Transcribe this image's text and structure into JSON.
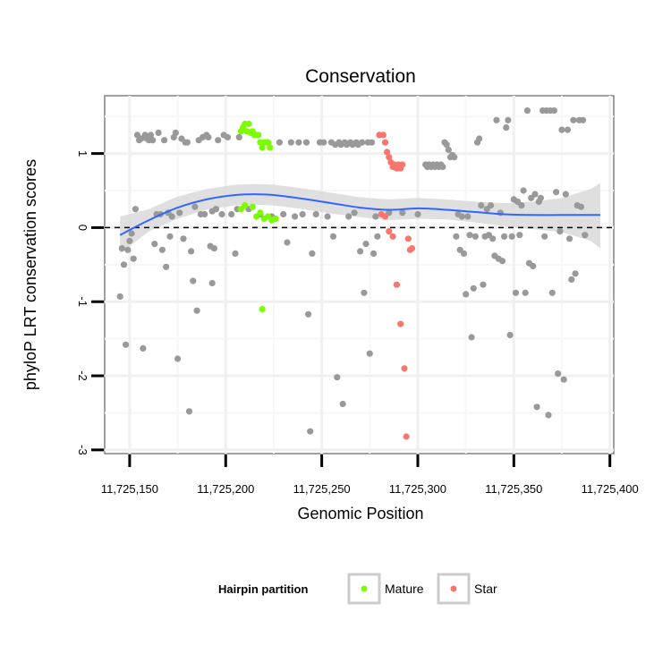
{
  "chart_data": {
    "type": "scatter",
    "title": "Conservation",
    "xlabel": "Genomic Position",
    "ylabel": "phyloP LRT conservation scores",
    "xlim": [
      11725137,
      11725402
    ],
    "ylim": [
      -3.05,
      1.78
    ],
    "x_ticks": [
      11725150,
      11725200,
      11725250,
      11725300,
      11725350,
      11725400
    ],
    "x_tick_labels": [
      "11,725,150",
      "11,725,200",
      "11,725,250",
      "11,725,300",
      "11,725,350",
      "11,725,400"
    ],
    "y_ticks": [
      -3,
      -2,
      -1,
      0,
      1
    ],
    "y_tick_labels": [
      "-3",
      "-2",
      "-1",
      "0",
      "1"
    ],
    "reference_line": {
      "y": 0,
      "style": "dashed"
    },
    "legend": {
      "title": "Hairpin partition",
      "position": "bottom",
      "entries": [
        {
          "name": "Mature",
          "color": "#7CFC00"
        },
        {
          "name": "Star",
          "color": "#F8766D"
        }
      ]
    },
    "colors": {
      "other": "#999999",
      "Mature": "#7CFC00",
      "Star": "#F8766D",
      "smooth": "#3366FF",
      "ribbon": "#D9D9D9"
    },
    "series": [
      {
        "name": "Other",
        "points": [
          [
            11725145,
            -0.93
          ],
          [
            11725146,
            -0.28
          ],
          [
            11725147,
            -0.5
          ],
          [
            11725148,
            -1.58
          ],
          [
            11725149,
            -0.3
          ],
          [
            11725150,
            -0.18
          ],
          [
            11725151,
            -0.08
          ],
          [
            11725152,
            -0.42
          ],
          [
            11725153,
            0.25
          ],
          [
            11725154,
            1.25
          ],
          [
            11725155,
            1.18
          ],
          [
            11725156,
            1.2
          ],
          [
            11725157,
            -1.63
          ],
          [
            11725158,
            1.25
          ],
          [
            11725159,
            1.2
          ],
          [
            11725160,
            1.18
          ],
          [
            11725161,
            1.25
          ],
          [
            11725162,
            1.18
          ],
          [
            11725163,
            -0.22
          ],
          [
            11725164,
            0.18
          ],
          [
            11725165,
            1.28
          ],
          [
            11725166,
            0.18
          ],
          [
            11725167,
            -0.3
          ],
          [
            11725168,
            1.18
          ],
          [
            11725169,
            -0.53
          ],
          [
            11725170,
            0.2
          ],
          [
            11725171,
            -0.12
          ],
          [
            11725172,
            0.15
          ],
          [
            11725173,
            1.22
          ],
          [
            11725174,
            1.28
          ],
          [
            11725175,
            -1.77
          ],
          [
            11725176,
            0.2
          ],
          [
            11725177,
            1.2
          ],
          [
            11725178,
            -0.15
          ],
          [
            11725179,
            1.15
          ],
          [
            11725180,
            1.15
          ],
          [
            11725181,
            -2.48
          ],
          [
            11725182,
            -0.32
          ],
          [
            11725183,
            -0.72
          ],
          [
            11725184,
            0.28
          ],
          [
            11725185,
            -1.12
          ],
          [
            11725186,
            1.18
          ],
          [
            11725187,
            0.18
          ],
          [
            11725188,
            1.22
          ],
          [
            11725189,
            0.18
          ],
          [
            11725190,
            1.25
          ],
          [
            11725191,
            1.22
          ],
          [
            11725192,
            -0.25
          ],
          [
            11725193,
            0.22
          ],
          [
            11725194,
            -0.28
          ],
          [
            11725195,
            0.25
          ],
          [
            11725196,
            1.18
          ],
          [
            11725198,
            0.18
          ],
          [
            11725199,
            1.25
          ],
          [
            11725201,
            1.22
          ],
          [
            11725203,
            0.18
          ],
          [
            11725205,
            -0.35
          ],
          [
            11725206,
            0.25
          ],
          [
            11725207,
            1.22
          ],
          [
            11725193,
            -0.75
          ],
          [
            11725212,
            0.25
          ],
          [
            11725218,
            0.18
          ],
          [
            11725222,
            1.15
          ],
          [
            11725224,
            0.15
          ],
          [
            11725228,
            1.15
          ],
          [
            11725230,
            0.18
          ],
          [
            11725232,
            -0.2
          ],
          [
            11725234,
            1.15
          ],
          [
            11725236,
            0.15
          ],
          [
            11725238,
            1.15
          ],
          [
            11725240,
            0.18
          ],
          [
            11725242,
            1.15
          ],
          [
            11725243,
            -1.17
          ],
          [
            11725244,
            -2.75
          ],
          [
            11725245,
            -0.35
          ],
          [
            11725247,
            0.18
          ],
          [
            11725249,
            1.15
          ],
          [
            11725251,
            1.15
          ],
          [
            11725253,
            0.15
          ],
          [
            11725255,
            1.15
          ],
          [
            11725256,
            -0.12
          ],
          [
            11725257,
            1.12
          ],
          [
            11725258,
            -2.02
          ],
          [
            11725259,
            1.15
          ],
          [
            11725260,
            1.12
          ],
          [
            11725261,
            -2.38
          ],
          [
            11725262,
            1.15
          ],
          [
            11725263,
            1.12
          ],
          [
            11725264,
            0.15
          ],
          [
            11725265,
            1.15
          ],
          [
            11725266,
            1.12
          ],
          [
            11725267,
            0.2
          ],
          [
            11725268,
            1.15
          ],
          [
            11725269,
            1.12
          ],
          [
            11725270,
            -0.32
          ],
          [
            11725271,
            1.15
          ],
          [
            11725272,
            -0.88
          ],
          [
            11725273,
            -0.22
          ],
          [
            11725274,
            1.15
          ],
          [
            11725275,
            -1.7
          ],
          [
            11725276,
            1.15
          ],
          [
            11725277,
            -0.35
          ],
          [
            11725278,
            0.15
          ],
          [
            11725279,
            -0.12
          ],
          [
            11725285,
            0.2
          ],
          [
            11725292,
            0.2
          ],
          [
            11725300,
            0.18
          ],
          [
            11725304,
            0.85
          ],
          [
            11725305,
            0.82
          ],
          [
            11725306,
            0.85
          ],
          [
            11725307,
            0.82
          ],
          [
            11725308,
            0.85
          ],
          [
            11725309,
            0.82
          ],
          [
            11725310,
            0.85
          ],
          [
            11725311,
            0.82
          ],
          [
            11725312,
            0.85
          ],
          [
            11725313,
            0.82
          ],
          [
            11725314,
            1.15
          ],
          [
            11725315,
            1.12
          ],
          [
            11725316,
            1.05
          ],
          [
            11725317,
            0.95
          ],
          [
            11725318,
            0.98
          ],
          [
            11725319,
            0.95
          ],
          [
            11725320,
            -0.12
          ],
          [
            11725321,
            0.18
          ],
          [
            11725322,
            -0.3
          ],
          [
            11725323,
            0.15
          ],
          [
            11725324,
            -0.35
          ],
          [
            11725325,
            -0.9
          ],
          [
            11725326,
            0.15
          ],
          [
            11725327,
            -0.1
          ],
          [
            11725328,
            -1.48
          ],
          [
            11725329,
            -0.82
          ],
          [
            11725330,
            -0.12
          ],
          [
            11725331,
            1.15
          ],
          [
            11725332,
            1.2
          ],
          [
            11725333,
            0.3
          ],
          [
            11725334,
            -0.77
          ],
          [
            11725335,
            -0.12
          ],
          [
            11725336,
            0.25
          ],
          [
            11725337,
            -0.1
          ],
          [
            11725338,
            0.3
          ],
          [
            11725339,
            -0.15
          ],
          [
            11725340,
            -0.38
          ],
          [
            11725341,
            1.45
          ],
          [
            11725342,
            -0.42
          ],
          [
            11725343,
            0.2
          ],
          [
            11725344,
            -0.45
          ],
          [
            11725345,
            -0.12
          ],
          [
            11725346,
            1.35
          ],
          [
            11725347,
            1.45
          ],
          [
            11725348,
            -1.45
          ],
          [
            11725349,
            -0.12
          ],
          [
            11725350,
            0.38
          ],
          [
            11725351,
            -0.88
          ],
          [
            11725352,
            0.35
          ],
          [
            11725353,
            -0.1
          ],
          [
            11725354,
            0.3
          ],
          [
            11725355,
            0.5
          ],
          [
            11725356,
            -0.88
          ],
          [
            11725357,
            1.58
          ],
          [
            11725358,
            -0.48
          ],
          [
            11725359,
            0.4
          ],
          [
            11725360,
            -0.52
          ],
          [
            11725361,
            0.45
          ],
          [
            11725362,
            -2.42
          ],
          [
            11725363,
            0.35
          ],
          [
            11725364,
            0.4
          ],
          [
            11725365,
            1.58
          ],
          [
            11725366,
            -0.12
          ],
          [
            11725367,
            1.58
          ],
          [
            11725368,
            -2.53
          ],
          [
            11725369,
            1.58
          ],
          [
            11725370,
            -0.88
          ],
          [
            11725371,
            1.58
          ],
          [
            11725372,
            0.48
          ],
          [
            11725373,
            -1.97
          ],
          [
            11725374,
            -0.05
          ],
          [
            11725375,
            1.32
          ],
          [
            11725376,
            -2.05
          ],
          [
            11725377,
            0.45
          ],
          [
            11725378,
            1.32
          ],
          [
            11725379,
            -0.15
          ],
          [
            11725380,
            -0.7
          ],
          [
            11725381,
            1.45
          ],
          [
            11725382,
            -0.62
          ],
          [
            11725383,
            0.3
          ],
          [
            11725384,
            1.45
          ],
          [
            11725385,
            0.28
          ],
          [
            11725386,
            1.45
          ],
          [
            11725387,
            -0.1
          ]
        ]
      },
      {
        "name": "Mature",
        "points": [
          [
            11725208,
            1.3
          ],
          [
            11725209,
            1.35
          ],
          [
            11725210,
            1.4
          ],
          [
            11725211,
            1.3
          ],
          [
            11725212,
            1.4
          ],
          [
            11725213,
            1.28
          ],
          [
            11725214,
            1.3
          ],
          [
            11725215,
            1.25
          ],
          [
            11725216,
            1.25
          ],
          [
            11725217,
            1.25
          ],
          [
            11725218,
            1.15
          ],
          [
            11725219,
            1.08
          ],
          [
            11725220,
            1.15
          ],
          [
            11725221,
            1.15
          ],
          [
            11725222,
            1.15
          ],
          [
            11725223,
            1.08
          ],
          [
            11725208,
            0.25
          ],
          [
            11725210,
            0.3
          ],
          [
            11725214,
            0.28
          ],
          [
            11725216,
            0.15
          ],
          [
            11725218,
            0.2
          ],
          [
            11725220,
            0.12
          ],
          [
            11725222,
            0.15
          ],
          [
            11725224,
            0.1
          ],
          [
            11725226,
            0.12
          ],
          [
            11725219,
            -1.1
          ]
        ]
      },
      {
        "name": "Star",
        "points": [
          [
            11725280,
            1.25
          ],
          [
            11725282,
            1.25
          ],
          [
            11725283,
            1.15
          ],
          [
            11725284,
            1.02
          ],
          [
            11725285,
            0.95
          ],
          [
            11725286,
            0.88
          ],
          [
            11725287,
            0.82
          ],
          [
            11725288,
            0.85
          ],
          [
            11725289,
            0.8
          ],
          [
            11725290,
            0.85
          ],
          [
            11725291,
            0.8
          ],
          [
            11725292,
            0.85
          ],
          [
            11725281,
            0.18
          ],
          [
            11725283,
            0.15
          ],
          [
            11725285,
            -0.05
          ],
          [
            11725287,
            -0.12
          ],
          [
            11725289,
            -0.77
          ],
          [
            11725291,
            -1.3
          ],
          [
            11725293,
            -1.9
          ],
          [
            11725294,
            -2.82
          ],
          [
            11725295,
            -0.15
          ],
          [
            11725296,
            -0.3
          ],
          [
            11725297,
            -0.28
          ]
        ]
      }
    ],
    "smooth_curve": {
      "x": [
        11725145,
        11725160,
        11725175,
        11725190,
        11725205,
        11725215,
        11725225,
        11725240,
        11725255,
        11725270,
        11725285,
        11725300,
        11725315,
        11725330,
        11725345,
        11725360,
        11725375,
        11725390,
        11725395
      ],
      "y": [
        -0.1,
        0.1,
        0.27,
        0.38,
        0.44,
        0.45,
        0.44,
        0.39,
        0.33,
        0.27,
        0.24,
        0.26,
        0.24,
        0.21,
        0.18,
        0.17,
        0.17,
        0.17,
        0.17
      ],
      "lower": [
        -0.35,
        -0.05,
        0.12,
        0.24,
        0.3,
        0.31,
        0.3,
        0.25,
        0.19,
        0.14,
        0.1,
        0.12,
        0.11,
        0.07,
        0.02,
        -0.02,
        -0.06,
        -0.18,
        -0.28
      ],
      "upper": [
        0.15,
        0.25,
        0.42,
        0.52,
        0.58,
        0.59,
        0.58,
        0.53,
        0.47,
        0.41,
        0.38,
        0.4,
        0.38,
        0.35,
        0.33,
        0.35,
        0.4,
        0.52,
        0.6
      ]
    }
  }
}
